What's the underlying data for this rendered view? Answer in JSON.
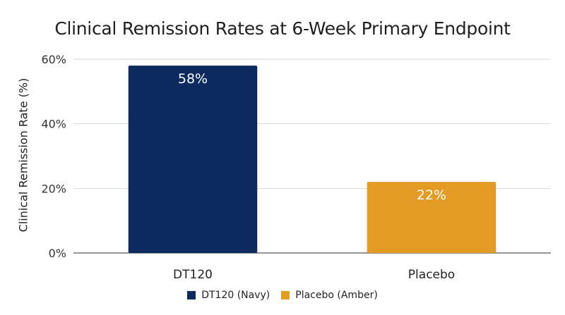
{
  "chart_data": {
    "type": "bar",
    "title": "Clinical Remission Rates at 6-Week Primary Endpoint",
    "xlabel": "",
    "ylabel": "Clinical Remission Rate (%)",
    "categories": [
      "DT120",
      "Placebo"
    ],
    "values": [
      58,
      22
    ],
    "value_labels": [
      "58%",
      "22%"
    ],
    "ylim": [
      0,
      60
    ],
    "yticks": [
      0,
      20,
      40,
      60
    ],
    "ytick_labels": [
      "0%",
      "20%",
      "40%",
      "60%"
    ],
    "grid": true,
    "legend_position": "bottom",
    "legend": [
      "DT120 (Navy)",
      "Placebo (Amber)"
    ],
    "colors": [
      "#0d2a5e",
      "#e39b26"
    ]
  }
}
